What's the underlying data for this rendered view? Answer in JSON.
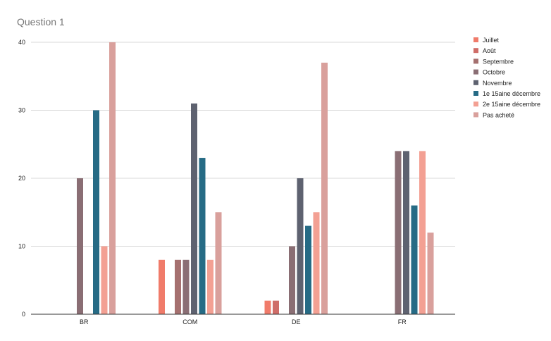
{
  "chart_data": {
    "type": "bar",
    "title": "Question 1",
    "xlabel": "",
    "ylabel": "",
    "categories": [
      "BR",
      "COM",
      "DE",
      "FR"
    ],
    "ylim": [
      0,
      40
    ],
    "yticks": [
      0,
      10,
      20,
      30,
      40
    ],
    "grid": true,
    "legend_position": "right",
    "series": [
      {
        "name": "Juillet",
        "color": "#f07b6a",
        "values": [
          0,
          8,
          2,
          0
        ]
      },
      {
        "name": "Août",
        "color": "#cf6d68",
        "values": [
          0,
          0,
          2,
          0
        ]
      },
      {
        "name": "Septembre",
        "color": "#a5706f",
        "values": [
          0,
          8,
          0,
          0
        ]
      },
      {
        "name": "Octobre",
        "color": "#8a6e74",
        "values": [
          20,
          8,
          10,
          24
        ]
      },
      {
        "name": "Novembre",
        "color": "#5e6270",
        "values": [
          0,
          31,
          20,
          24
        ]
      },
      {
        "name": "1e 15aine décembre",
        "color": "#266b85",
        "values": [
          30,
          23,
          13,
          16
        ]
      },
      {
        "name": "2e 15aine décembre",
        "color": "#f3a093",
        "values": [
          10,
          8,
          15,
          24
        ]
      },
      {
        "name": "Pas acheté",
        "color": "#d9a09c",
        "values": [
          40,
          15,
          37,
          12
        ]
      }
    ]
  }
}
